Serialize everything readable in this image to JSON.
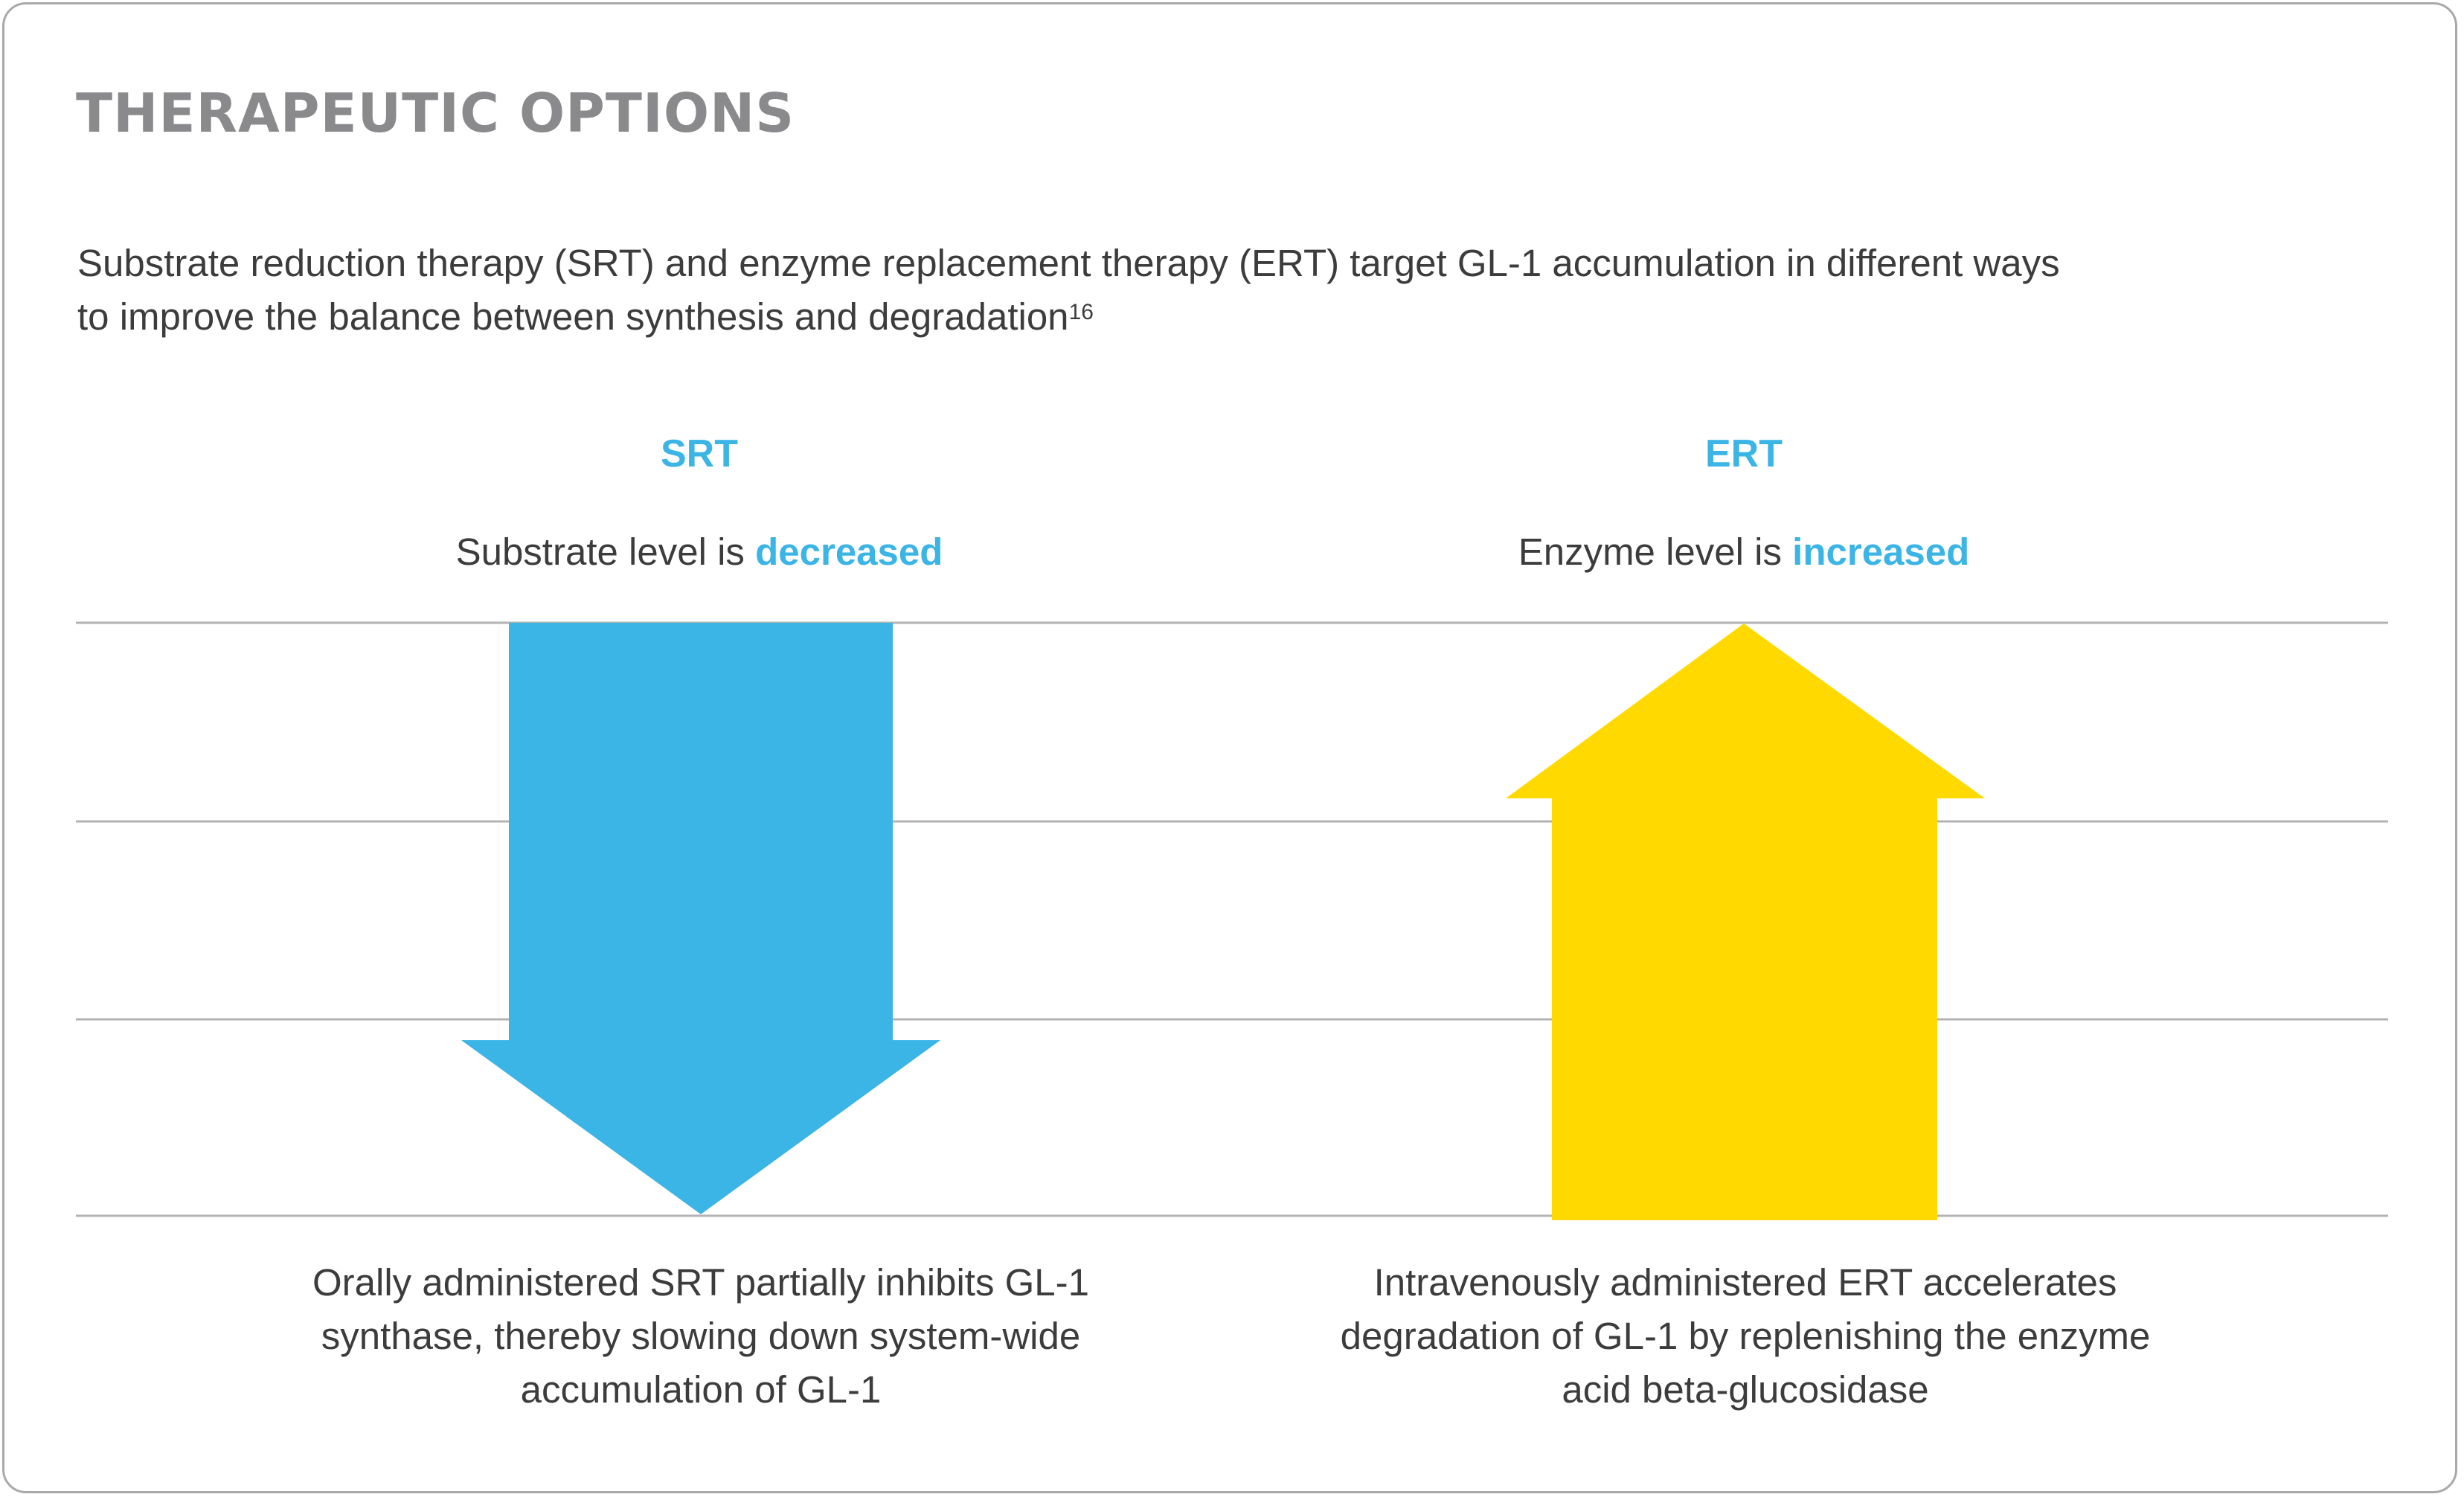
{
  "title": "THERAPEUTIC OPTIONS",
  "intro": {
    "text": "Substrate reduction therapy (SRT) and enzyme replacement therapy (ERT) target GL-1 accumulation in different ways to improve the balance between synthesis and degradation",
    "reference": "16"
  },
  "srt": {
    "label": "SRT",
    "level_prefix": "Substrate level is ",
    "level_emphasis": "decreased",
    "caption": "Orally administered SRT partially inhibits GL-1 synthase, thereby slowing down system-wide accumulation of GL-1",
    "arrow_direction": "down",
    "arrow_color": "#3bb4e6"
  },
  "ert": {
    "label": "ERT",
    "level_prefix": "Enzyme level is ",
    "level_emphasis": "increased",
    "caption": "Intravenously administered ERT accelerates degradation of GL-1 by replenishing the enzyme acid beta-glucosidase",
    "arrow_direction": "up",
    "arrow_color": "#ffd900"
  },
  "colors": {
    "title": "#8a8a8d",
    "accent": "#3bb4e6",
    "text": "#3c3c3c",
    "rule": "#b3b3b3",
    "border": "#a9a9a9"
  }
}
